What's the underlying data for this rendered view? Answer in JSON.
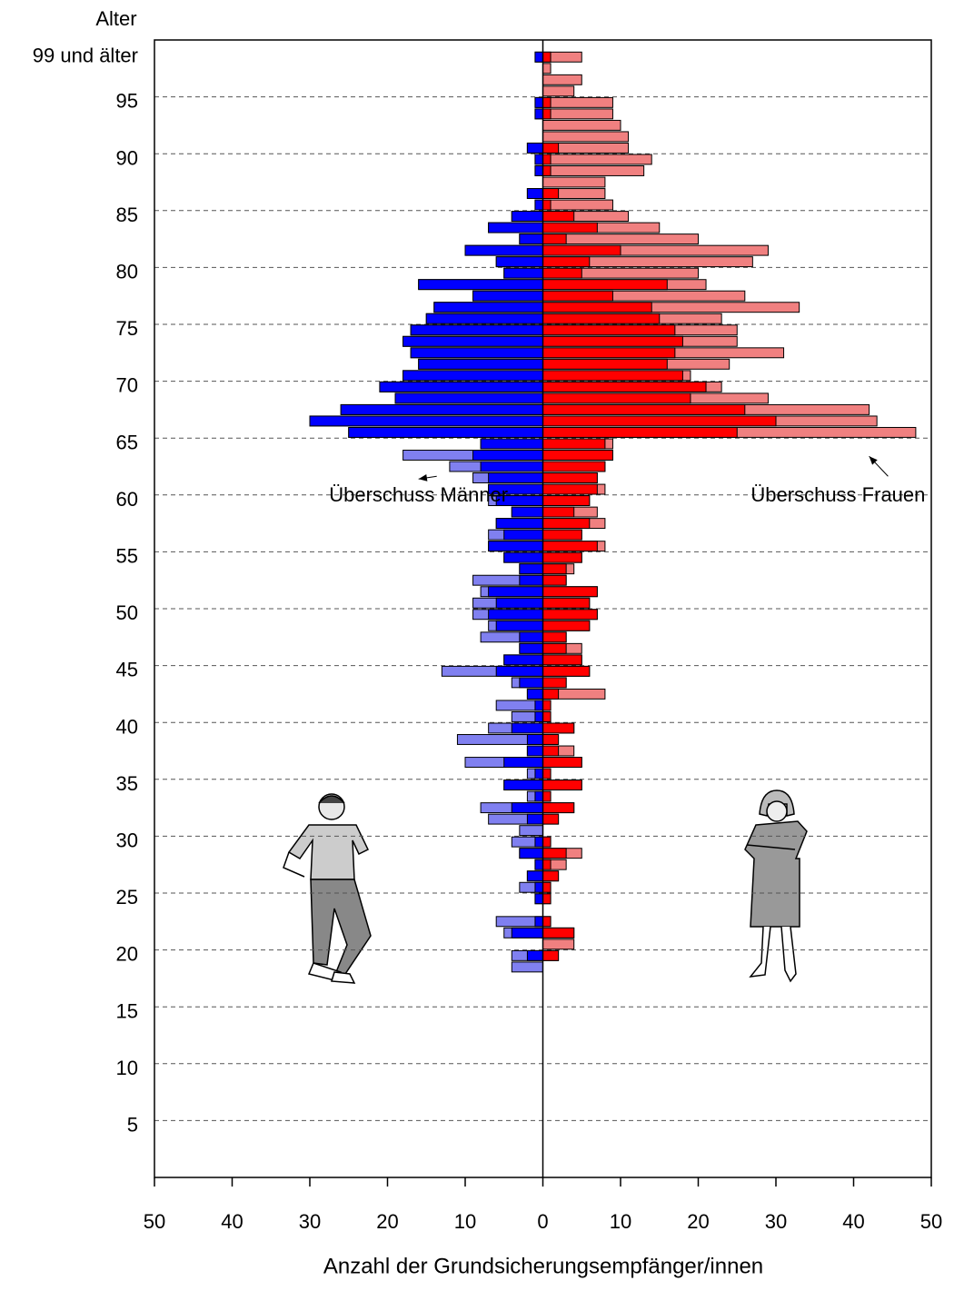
{
  "chart_data": {
    "type": "pyramid",
    "y_label": "Alter",
    "x_label": "Anzahl der Grundsicherungsempfänger/innen",
    "y": [
      99,
      98,
      97,
      96,
      95,
      94,
      93,
      92,
      91,
      90,
      89,
      88,
      87,
      86,
      85,
      84,
      83,
      82,
      81,
      80,
      79,
      78,
      77,
      76,
      75,
      74,
      73,
      72,
      71,
      70,
      69,
      68,
      67,
      66,
      65,
      64,
      63,
      62,
      61,
      60,
      59,
      58,
      57,
      56,
      55,
      54,
      53,
      52,
      51,
      50,
      49,
      48,
      47,
      46,
      45,
      44,
      43,
      42,
      41,
      40,
      39,
      38,
      37,
      36,
      35,
      34,
      33,
      32,
      31,
      30,
      29,
      28,
      27,
      26,
      25,
      24,
      23,
      22,
      21,
      20,
      19
    ],
    "series": [
      {
        "side": "left",
        "color": "#0000ff",
        "surplus_color": "#8080f0",
        "values": [
          1,
          0,
          0,
          0,
          1,
          1,
          0,
          0,
          2,
          1,
          1,
          0,
          2,
          1,
          4,
          7,
          3,
          10,
          6,
          5,
          16,
          9,
          14,
          15,
          17,
          18,
          17,
          16,
          18,
          21,
          19,
          26,
          30,
          25,
          8,
          18,
          12,
          9,
          7,
          7,
          4,
          6,
          7,
          7,
          5,
          3,
          9,
          8,
          9,
          9,
          7,
          8,
          3,
          5,
          13,
          4,
          2,
          6,
          4,
          7,
          11,
          2,
          10,
          2,
          5,
          2,
          8,
          7,
          3,
          4,
          3,
          1,
          2,
          3,
          1,
          0,
          6,
          5,
          0,
          4,
          4
        ]
      },
      {
        "side": "right",
        "color": "#ff0000",
        "surplus_color": "#f08080",
        "values": [
          5,
          1,
          5,
          4,
          9,
          9,
          10,
          11,
          11,
          14,
          13,
          8,
          8,
          9,
          11,
          15,
          20,
          29,
          27,
          20,
          21,
          26,
          33,
          23,
          25,
          25,
          31,
          24,
          19,
          23,
          29,
          42,
          43,
          48,
          9,
          9,
          8,
          7,
          8,
          6,
          7,
          8,
          5,
          8,
          5,
          4,
          3,
          7,
          6,
          7,
          6,
          3,
          5,
          5,
          6,
          3,
          8,
          1,
          1,
          4,
          2,
          4,
          5,
          1,
          5,
          1,
          4,
          2,
          0,
          1,
          5,
          3,
          2,
          1,
          1,
          0,
          1,
          4,
          4,
          2,
          0
        ]
      }
    ],
    "xlim": [
      -50,
      50
    ],
    "xticks": [
      {
        "value": -50,
        "label": "50"
      },
      {
        "value": -40,
        "label": "40"
      },
      {
        "value": -30,
        "label": "30"
      },
      {
        "value": -20,
        "label": "20"
      },
      {
        "value": -10,
        "label": "10"
      },
      0,
      10,
      20,
      30,
      40,
      50
    ],
    "ylim": [
      0,
      100
    ],
    "yticks": [
      5,
      10,
      15,
      20,
      25,
      30,
      35,
      40,
      45,
      50,
      55,
      60,
      65,
      70,
      75,
      80,
      85,
      90,
      95,
      {
        "value": 99,
        "label": "99 und älter"
      }
    ],
    "grid": true,
    "annotations": [
      {
        "text": "Überschuss Männer",
        "x": -16,
        "y": 61,
        "target_x": -16,
        "target_y": 63
      },
      {
        "text": "Überschuss Frauen",
        "x": 38,
        "y": 61,
        "target_x": 42,
        "target_y": 65
      }
    ]
  }
}
